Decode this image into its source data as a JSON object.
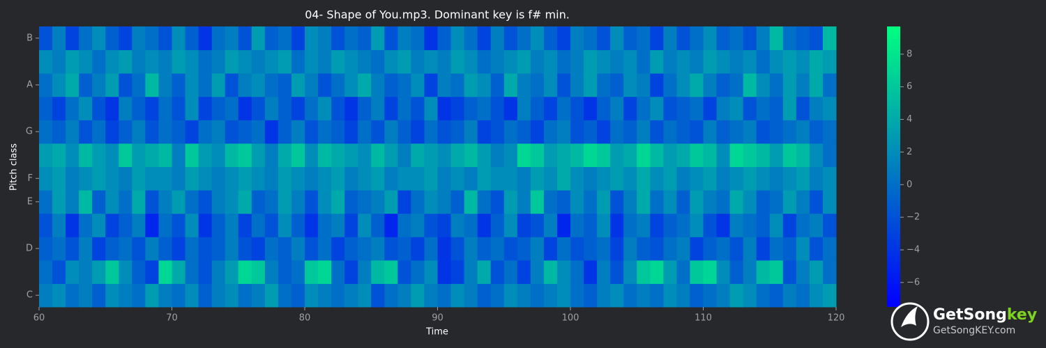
{
  "chart_data": {
    "type": "heatmap",
    "title": "04- Shape of You.mp3. Dominant key is f# min.",
    "xlabel": "Time",
    "ylabel": "Pitch class",
    "xlim": [
      60,
      120
    ],
    "xticks": [
      60,
      70,
      80,
      90,
      100,
      110,
      120
    ],
    "x": [
      60,
      61,
      62,
      63,
      64,
      65,
      66,
      67,
      68,
      69,
      70,
      71,
      72,
      73,
      74,
      75,
      76,
      77,
      78,
      79,
      80,
      81,
      82,
      83,
      84,
      85,
      86,
      87,
      88,
      89,
      90,
      91,
      92,
      93,
      94,
      95,
      96,
      97,
      98,
      99,
      100,
      101,
      102,
      103,
      104,
      105,
      106,
      107,
      108,
      109,
      110,
      111,
      112,
      113,
      114,
      115,
      116,
      117,
      118,
      119
    ],
    "categories": [
      "C",
      null,
      "D",
      null,
      "E",
      "F",
      null,
      "G",
      null,
      "A",
      null,
      "B"
    ],
    "cmap": [
      "#0000ff",
      "#00ff80"
    ],
    "clim": [
      -7.5,
      9.7
    ],
    "cticks": [
      {
        "value": -6,
        "label": "−6"
      },
      {
        "value": -4,
        "label": "−4"
      },
      {
        "value": -2,
        "label": "−2"
      },
      0,
      2,
      4,
      6,
      8
    ],
    "values": [
      [
        1,
        2,
        0,
        1,
        -1,
        2,
        1,
        0,
        3,
        1,
        0,
        2,
        -1,
        1,
        2,
        0,
        1,
        3,
        0,
        -1,
        2,
        1,
        0,
        1,
        2,
        -2,
        0,
        1,
        3,
        1,
        0,
        2,
        1,
        -1,
        0,
        2,
        1,
        0,
        1,
        2,
        0,
        -1,
        1,
        2,
        0,
        1,
        0,
        2,
        1,
        -1,
        0,
        1,
        3,
        2,
        0,
        -1,
        1,
        0,
        2,
        3
      ],
      [
        0,
        -2,
        2,
        1,
        3,
        6,
        2,
        -1,
        -3,
        7,
        4,
        0,
        -2,
        1,
        3,
        7,
        6,
        1,
        -1,
        0,
        6,
        7,
        0,
        -3,
        1,
        5,
        6,
        -2,
        0,
        2,
        -4,
        -3,
        1,
        4,
        -2,
        0,
        -3,
        1,
        5,
        2,
        0,
        -4,
        1,
        -2,
        2,
        6,
        7,
        3,
        0,
        6,
        7,
        2,
        -1,
        1,
        5,
        6,
        -2,
        1,
        3,
        0
      ],
      [
        -1,
        0,
        -2,
        1,
        -3,
        -1,
        0,
        -2,
        1,
        -1,
        -3,
        0,
        -2,
        -1,
        1,
        -2,
        -3,
        0,
        -1,
        1,
        -2,
        0,
        -3,
        -1,
        0,
        1,
        -2,
        -1,
        -3,
        0,
        -4,
        -2,
        1,
        -1,
        0,
        -2,
        -1,
        1,
        -3,
        0,
        -2,
        -1,
        0,
        -3,
        1,
        -1,
        -2,
        0,
        1,
        -3,
        -1,
        0,
        -2,
        1,
        -3,
        0,
        -1,
        2,
        -2,
        0
      ],
      [
        -2,
        1,
        -4,
        0,
        2,
        -3,
        -1,
        1,
        -5,
        0,
        -2,
        2,
        -4,
        -1,
        1,
        -3,
        0,
        -2,
        2,
        -1,
        -4,
        0,
        1,
        -3,
        2,
        -1,
        -5,
        0,
        1,
        -2,
        -3,
        1,
        0,
        -4,
        -1,
        2,
        -3,
        -2,
        1,
        -5,
        0,
        -1,
        2,
        -4,
        0,
        1,
        -3,
        -1,
        0,
        2,
        -2,
        -4,
        1,
        0,
        -1,
        2,
        -3,
        0,
        1,
        -2
      ],
      [
        0,
        3,
        1,
        5,
        -1,
        2,
        0,
        4,
        -2,
        1,
        3,
        0,
        -2,
        1,
        2,
        4,
        -1,
        0,
        3,
        1,
        -2,
        2,
        4,
        -1,
        0,
        1,
        3,
        -3,
        0,
        2,
        1,
        -1,
        5,
        0,
        -2,
        3,
        1,
        6,
        0,
        -1,
        2,
        0,
        3,
        -2,
        1,
        4,
        0,
        2,
        -1,
        3,
        1,
        0,
        4,
        2,
        -1,
        0,
        3,
        1,
        -2,
        2
      ],
      [
        2,
        3,
        1,
        2,
        3,
        2,
        1,
        3,
        2,
        2,
        1,
        3,
        2,
        1,
        2,
        3,
        2,
        1,
        3,
        2,
        1,
        2,
        3,
        1,
        2,
        3,
        1,
        2,
        2,
        3,
        1,
        2,
        1,
        3,
        2,
        2,
        1,
        3,
        2,
        4,
        2,
        1,
        2,
        3,
        2,
        4,
        2,
        3,
        1,
        2,
        3,
        1,
        2,
        3,
        2,
        1,
        2,
        3,
        1,
        2
      ],
      [
        3,
        4,
        2,
        5,
        3,
        2,
        6,
        3,
        4,
        5,
        1,
        6,
        3,
        2,
        5,
        6,
        3,
        1,
        4,
        6,
        2,
        5,
        4,
        3,
        2,
        5,
        3,
        1,
        4,
        3,
        2,
        4,
        5,
        3,
        1,
        2,
        7,
        6,
        3,
        4,
        5,
        7,
        6,
        3,
        4,
        7,
        5,
        3,
        4,
        6,
        5,
        2,
        7,
        6,
        5,
        3,
        6,
        5,
        2,
        0
      ],
      [
        0,
        -1,
        1,
        -2,
        0,
        -3,
        -1,
        1,
        -2,
        0,
        -1,
        -3,
        0,
        1,
        -2,
        -1,
        0,
        -4,
        -1,
        1,
        -2,
        0,
        -1,
        -3,
        0,
        -2,
        1,
        -1,
        -3,
        0,
        -2,
        -1,
        1,
        -3,
        -2,
        0,
        -1,
        -3,
        0,
        1,
        -2,
        -1,
        -3,
        0,
        -1,
        1,
        -2,
        0,
        -1,
        -2,
        1,
        -1,
        0,
        1,
        -2,
        -1,
        0,
        1,
        -1,
        0
      ],
      [
        -1,
        -3,
        0,
        2,
        -2,
        -4,
        1,
        -1,
        -3,
        0,
        -2,
        2,
        -3,
        -1,
        0,
        -4,
        -2,
        1,
        -1,
        -3,
        0,
        2,
        -2,
        -4,
        -1,
        1,
        -3,
        0,
        -2,
        2,
        -4,
        -3,
        -1,
        0,
        -2,
        -4,
        1,
        -1,
        -3,
        0,
        -2,
        -4,
        -1,
        1,
        -3,
        0,
        2,
        -2,
        -1,
        0,
        -3,
        1,
        2,
        -2,
        0,
        -1,
        3,
        -2,
        1,
        2
      ],
      [
        0,
        2,
        4,
        -1,
        1,
        3,
        -2,
        0,
        5,
        1,
        -1,
        2,
        0,
        3,
        -2,
        1,
        2,
        0,
        -1,
        3,
        1,
        -2,
        0,
        2,
        4,
        1,
        -1,
        0,
        2,
        -3,
        1,
        0,
        3,
        2,
        -1,
        4,
        1,
        0,
        2,
        -2,
        1,
        3,
        0,
        -1,
        2,
        1,
        -3,
        0,
        2,
        4,
        1,
        -1,
        0,
        5,
        2,
        0,
        3,
        1,
        4,
        0
      ],
      [
        2,
        1,
        3,
        2,
        0,
        2,
        3,
        1,
        2,
        1,
        3,
        2,
        0,
        1,
        3,
        2,
        1,
        2,
        3,
        0,
        2,
        1,
        3,
        2,
        1,
        0,
        2,
        3,
        1,
        2,
        1,
        3,
        2,
        0,
        1,
        2,
        3,
        1,
        2,
        0,
        1,
        3,
        2,
        1,
        2,
        0,
        3,
        1,
        2,
        1,
        3,
        2,
        1,
        2,
        0,
        2,
        3,
        2,
        4,
        3
      ],
      [
        -2,
        1,
        -3,
        0,
        2,
        -1,
        -3,
        1,
        0,
        -2,
        2,
        -1,
        -4,
        0,
        1,
        -2,
        3,
        -1,
        0,
        -3,
        2,
        1,
        -2,
        0,
        -1,
        3,
        -2,
        1,
        0,
        -4,
        -1,
        2,
        0,
        -3,
        1,
        -2,
        0,
        2,
        -1,
        -3,
        1,
        0,
        -2,
        2,
        -1,
        0,
        -3,
        1,
        -2,
        0,
        2,
        -1,
        0,
        -2,
        1,
        5,
        0,
        -1,
        -2,
        5
      ]
    ]
  },
  "watermark": {
    "brand": "GetSong",
    "brand_accent": "key",
    "url": "GetSongKEY.com"
  }
}
